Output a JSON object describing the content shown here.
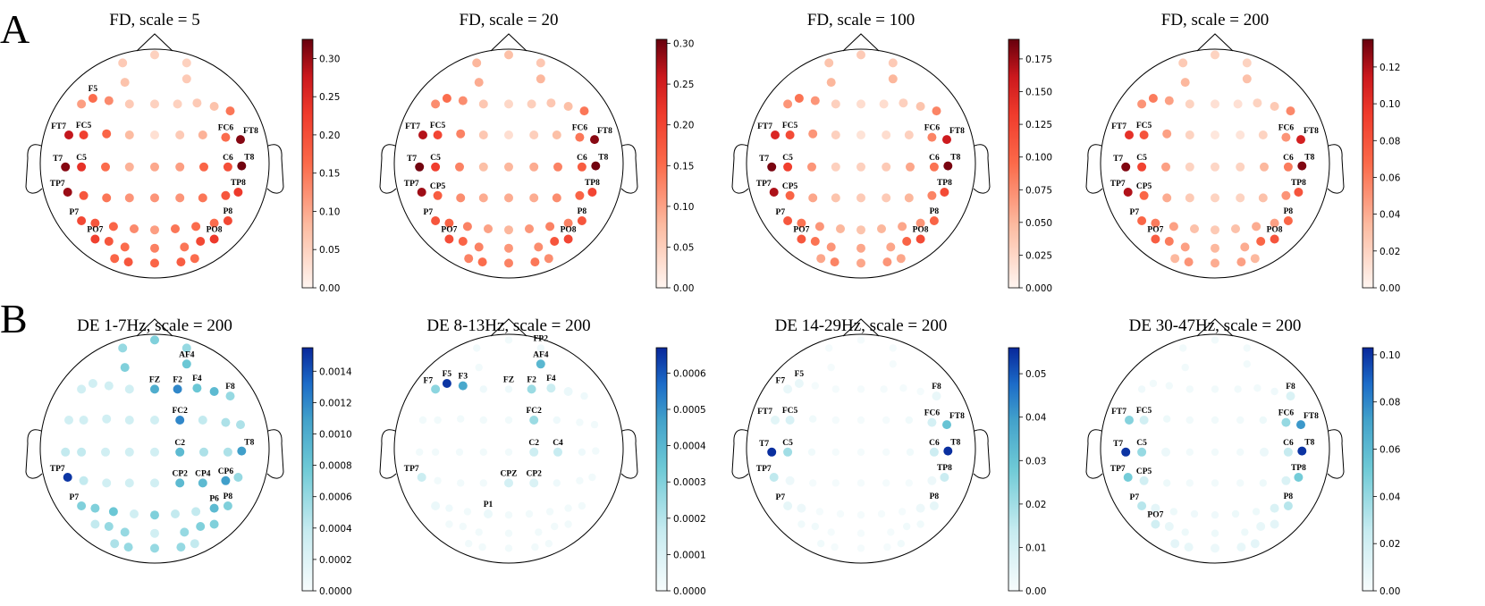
{
  "figure": {
    "row_labels": [
      "A",
      "B"
    ]
  },
  "chart_data": [
    {
      "type": "heatmap",
      "colormap": "Reds",
      "title": "FD, scale = 5",
      "colorbar_ticks": [
        "0.00",
        "0.05",
        "0.10",
        "0.15",
        "0.20",
        "0.25",
        "0.30"
      ],
      "vmax": 0.325,
      "values": {
        "FP1": 0.06,
        "FPZ": 0.05,
        "FP2": 0.05,
        "AF3": 0.07,
        "AF4": 0.06,
        "F7": 0.11,
        "F5": 0.16,
        "F3": 0.13,
        "F1": 0.06,
        "FZ": 0.05,
        "F2": 0.05,
        "F4": 0.06,
        "F6": 0.07,
        "F8": 0.15,
        "FT7": 0.28,
        "FC5": 0.22,
        "FC3": 0.17,
        "FC1": 0.08,
        "FCZ": 0.03,
        "FC2": 0.06,
        "FC4": 0.09,
        "FC6": 0.16,
        "FT8": 0.31,
        "T7": 0.31,
        "C5": 0.24,
        "C3": 0.16,
        "C1": 0.09,
        "CZ": 0.1,
        "C2": 0.11,
        "C4": 0.17,
        "C6": 0.2,
        "T8": 0.32,
        "TP7": 0.3,
        "CP5": 0.19,
        "CP3": 0.15,
        "CP1": 0.12,
        "CPZ": 0.12,
        "CP2": 0.12,
        "CP4": 0.15,
        "CP6": 0.19,
        "TP8": 0.23,
        "P7": 0.21,
        "P5": 0.19,
        "P3": 0.17,
        "P1": 0.13,
        "PZ": 0.11,
        "P2": 0.15,
        "P4": 0.16,
        "P6": 0.16,
        "P8": 0.21,
        "PO7": 0.22,
        "PO5": 0.19,
        "PO3": 0.16,
        "POZ": 0.14,
        "PO4": 0.15,
        "PO6": 0.21,
        "PO8": 0.23,
        "CB1": 0.17,
        "O1": 0.19,
        "OZ": 0.17,
        "O2": 0.18,
        "CB2": 0.16
      },
      "labels": [
        "F5",
        "FT7",
        "FC5",
        "T7",
        "C5",
        "TP7",
        "P7",
        "PO7",
        "FC6",
        "FT8",
        "C6",
        "T8",
        "TP8",
        "P8",
        "PO8"
      ]
    },
    {
      "type": "heatmap",
      "colormap": "Reds",
      "title": "FD, scale = 20",
      "colorbar_ticks": [
        "0.00",
        "0.05",
        "0.10",
        "0.15",
        "0.20",
        "0.25",
        "0.30"
      ],
      "vmax": 0.305,
      "values": {
        "FP1": 0.08,
        "FPZ": 0.07,
        "FP2": 0.06,
        "AF3": 0.09,
        "AF4": 0.08,
        "F7": 0.12,
        "F5": 0.15,
        "F3": 0.12,
        "F1": 0.06,
        "FZ": 0.04,
        "F2": 0.05,
        "F4": 0.06,
        "F6": 0.07,
        "F8": 0.14,
        "FT7": 0.27,
        "FC5": 0.2,
        "FC3": 0.13,
        "FC1": 0.06,
        "FCZ": 0.03,
        "FC2": 0.05,
        "FC4": 0.07,
        "FC6": 0.14,
        "FT8": 0.29,
        "T7": 0.3,
        "C5": 0.21,
        "C3": 0.13,
        "C1": 0.07,
        "CZ": 0.08,
        "C2": 0.09,
        "C4": 0.13,
        "C6": 0.17,
        "T8": 0.3,
        "TP7": 0.28,
        "CP5": 0.17,
        "CP3": 0.12,
        "CP1": 0.09,
        "CPZ": 0.09,
        "CP2": 0.09,
        "CP4": 0.12,
        "CP6": 0.16,
        "TP8": 0.2,
        "P7": 0.18,
        "P5": 0.16,
        "P3": 0.13,
        "P1": 0.1,
        "PZ": 0.08,
        "P2": 0.11,
        "P4": 0.13,
        "P6": 0.13,
        "P8": 0.18,
        "PO7": 0.19,
        "PO5": 0.16,
        "PO3": 0.13,
        "POZ": 0.11,
        "PO4": 0.12,
        "PO6": 0.18,
        "PO8": 0.2,
        "CB1": 0.13,
        "O1": 0.15,
        "OZ": 0.13,
        "O2": 0.14,
        "CB2": 0.12
      },
      "labels": [
        "FT7",
        "FC5",
        "T7",
        "C5",
        "TP7",
        "CP5",
        "P7",
        "PO7",
        "FC6",
        "FT8",
        "C6",
        "T8",
        "TP8",
        "P8",
        "PO8"
      ]
    },
    {
      "type": "heatmap",
      "colormap": "Reds",
      "title": "FD, scale = 100",
      "colorbar_ticks": [
        "0.000",
        "0.025",
        "0.050",
        "0.075",
        "0.100",
        "0.125",
        "0.150",
        "0.175"
      ],
      "vmax": 0.19,
      "values": {
        "FP1": 0.04,
        "FPZ": 0.035,
        "FP2": 0.035,
        "AF3": 0.05,
        "AF4": 0.05,
        "F7": 0.07,
        "F5": 0.09,
        "F3": 0.07,
        "F1": 0.03,
        "FZ": 0.02,
        "F2": 0.02,
        "F4": 0.03,
        "F6": 0.04,
        "F8": 0.08,
        "FT7": 0.15,
        "FC5": 0.12,
        "FC3": 0.07,
        "FC1": 0.03,
        "FCZ": 0.015,
        "FC2": 0.02,
        "FC4": 0.03,
        "FC6": 0.08,
        "FT8": 0.16,
        "T7": 0.185,
        "C5": 0.13,
        "C3": 0.07,
        "C1": 0.03,
        "CZ": 0.03,
        "C2": 0.035,
        "C4": 0.06,
        "C6": 0.09,
        "T8": 0.185,
        "TP7": 0.17,
        "CP5": 0.1,
        "CP3": 0.06,
        "CP1": 0.04,
        "CPZ": 0.035,
        "CP2": 0.035,
        "CP4": 0.05,
        "CP6": 0.08,
        "TP8": 0.12,
        "P7": 0.11,
        "P5": 0.09,
        "P3": 0.07,
        "P1": 0.05,
        "PZ": 0.04,
        "P2": 0.05,
        "P4": 0.06,
        "P6": 0.07,
        "P8": 0.1,
        "PO7": 0.11,
        "PO5": 0.09,
        "PO3": 0.07,
        "POZ": 0.06,
        "PO4": 0.06,
        "PO6": 0.1,
        "PO8": 0.12,
        "CB1": 0.06,
        "O1": 0.08,
        "OZ": 0.06,
        "O2": 0.07,
        "CB2": 0.06
      },
      "labels": [
        "FC5",
        "FT7",
        "T7",
        "C5",
        "TP7",
        "CP5",
        "P7",
        "PO7",
        "FC6",
        "FT8",
        "C6",
        "T8",
        "TP8",
        "P8",
        "PO8"
      ]
    },
    {
      "type": "heatmap",
      "colormap": "Reds",
      "title": "FD, scale = 200",
      "colorbar_ticks": [
        "0.00",
        "0.02",
        "0.04",
        "0.06",
        "0.08",
        "0.10",
        "0.12"
      ],
      "vmax": 0.135,
      "values": {
        "FP1": 0.025,
        "FPZ": 0.02,
        "FP2": 0.02,
        "AF3": 0.035,
        "AF4": 0.03,
        "F7": 0.05,
        "F5": 0.06,
        "F3": 0.045,
        "F1": 0.02,
        "FZ": 0.012,
        "F2": 0.012,
        "F4": 0.02,
        "F6": 0.025,
        "F8": 0.055,
        "FT7": 0.1,
        "FC5": 0.08,
        "FC3": 0.045,
        "FC1": 0.02,
        "FCZ": 0.008,
        "FC2": 0.01,
        "FC4": 0.02,
        "FC6": 0.05,
        "FT8": 0.11,
        "T7": 0.13,
        "C5": 0.09,
        "C3": 0.045,
        "C1": 0.02,
        "CZ": 0.018,
        "C2": 0.02,
        "C4": 0.035,
        "C6": 0.06,
        "T8": 0.13,
        "TP7": 0.12,
        "CP5": 0.07,
        "CP3": 0.04,
        "CP1": 0.025,
        "CPZ": 0.02,
        "CP2": 0.02,
        "CP4": 0.03,
        "CP6": 0.05,
        "TP8": 0.08,
        "P7": 0.07,
        "P5": 0.06,
        "P3": 0.045,
        "P1": 0.03,
        "PZ": 0.025,
        "P2": 0.03,
        "P4": 0.04,
        "P6": 0.045,
        "P8": 0.07,
        "PO7": 0.075,
        "PO5": 0.06,
        "PO3": 0.045,
        "POZ": 0.035,
        "PO4": 0.04,
        "PO6": 0.07,
        "PO8": 0.08,
        "CB1": 0.035,
        "O1": 0.05,
        "OZ": 0.04,
        "O2": 0.045,
        "CB2": 0.035
      },
      "labels": [
        "FC5",
        "FT7",
        "T7",
        "C5",
        "TP7",
        "CP5",
        "P7",
        "PO7",
        "FC6",
        "FT8",
        "C6",
        "T8",
        "TP8",
        "P8",
        "PO8"
      ]
    },
    {
      "type": "heatmap",
      "colormap": "GnBu",
      "title": "DE 1-7Hz, scale = 200",
      "colorbar_ticks": [
        "0.0000",
        "0.0002",
        "0.0004",
        "0.0006",
        "0.0008",
        "0.0010",
        "0.0012",
        "0.0014"
      ],
      "vmax": 0.00155,
      "values": {
        "FP1": 0.0006,
        "FPZ": 0.0007,
        "FP2": 0.0006,
        "AF3": 0.0007,
        "AF4": 0.0008,
        "F7": 0.0003,
        "F5": 0.0003,
        "F3": 0.0003,
        "F1": 0.0003,
        "FZ": 0.001,
        "F2": 0.0012,
        "F4": 0.0008,
        "F6": 0.0009,
        "F8": 0.0006,
        "FT7": 0.0003,
        "FC5": 0.0003,
        "FC3": 0.0003,
        "FC1": 0.0003,
        "FCZ": 0.0003,
        "FC2": 0.0012,
        "FC4": 0.0004,
        "FC6": 0.0005,
        "FT8": 0.0005,
        "T7": 0.0004,
        "C5": 0.0004,
        "C3": 0.0003,
        "C1": 0.0003,
        "CZ": 0.0003,
        "C2": 0.0009,
        "C4": 0.0005,
        "C6": 0.0005,
        "T8": 0.0011,
        "TP7": 0.0015,
        "CP5": 0.0004,
        "CP3": 0.0003,
        "CP1": 0.0003,
        "CPZ": 0.0003,
        "CP2": 0.0009,
        "CP4": 0.0009,
        "CP6": 0.0011,
        "TP8": 0.0006,
        "P7": 0.0007,
        "P5": 0.0007,
        "P3": 0.0008,
        "P1": 0.0003,
        "PZ": 0.0007,
        "P2": 0.0004,
        "P4": 0.0004,
        "P6": 0.0009,
        "P8": 0.0007,
        "PO7": 0.0004,
        "PO5": 0.0006,
        "PO3": 0.0006,
        "POZ": 0.0003,
        "PO4": 0.0006,
        "PO6": 0.0007,
        "PO8": 0.0007,
        "CB1": 0.0005,
        "O1": 0.0006,
        "OZ": 0.0006,
        "O2": 0.0006,
        "CB2": 0.0004
      },
      "labels": [
        "AF4",
        "FZ",
        "F2",
        "F4",
        "F8",
        "FC2",
        "C2",
        "T8",
        "TP7",
        "CP2",
        "CP4",
        "CP6",
        "P7",
        "P6",
        "P8"
      ]
    },
    {
      "type": "heatmap",
      "colormap": "GnBu",
      "title": "DE 8-13Hz, scale = 200",
      "colorbar_ticks": [
        "0.0000",
        "0.0001",
        "0.0002",
        "0.0003",
        "0.0004",
        "0.0005",
        "0.0006"
      ],
      "vmax": 0.00067,
      "values": {
        "FP1": 2e-05,
        "FPZ": 2e-05,
        "FP2": 3e-05,
        "AF3": 2e-05,
        "AF4": 0.0004,
        "F7": 0.00028,
        "F5": 0.00065,
        "F3": 0.00045,
        "F1": 3e-05,
        "FZ": 3e-05,
        "F2": 0.00025,
        "F4": 0.00015,
        "F6": 4e-05,
        "F8": 3e-05,
        "FT7": 2e-05,
        "FC5": 2e-05,
        "FC3": 2e-05,
        "FC1": 2e-05,
        "FCZ": 2e-05,
        "FC2": 0.00025,
        "FC4": 3e-05,
        "FC6": 2e-05,
        "FT8": 2e-05,
        "T7": 2e-05,
        "C5": 2e-05,
        "C3": 2e-05,
        "C1": 2e-05,
        "CZ": 2e-05,
        "C2": 0.00014,
        "C4": 0.00016,
        "C6": 3e-05,
        "T8": 2e-05,
        "TP7": 0.00015,
        "CP5": 2e-05,
        "CP3": 2e-05,
        "CP1": 2e-05,
        "CPZ": 0.00012,
        "CP2": 0.0001,
        "CP4": 3e-05,
        "CP6": 2e-05,
        "TP8": 2e-05,
        "P7": 4e-05,
        "P5": 3e-05,
        "P3": 2e-05,
        "P1": 4e-05,
        "PZ": 2e-05,
        "P2": 2e-05,
        "P4": 2e-05,
        "P6": 2e-05,
        "P8": 2e-05,
        "PO7": 2e-05,
        "PO5": 2e-05,
        "PO3": 2e-05,
        "POZ": 2e-05,
        "PO4": 2e-05,
        "PO6": 2e-05,
        "PO8": 2e-05,
        "CB1": 2e-05,
        "O1": 2e-05,
        "OZ": 2e-05,
        "O2": 2e-05,
        "CB2": 2e-05
      },
      "labels": [
        "FP2",
        "AF4",
        "F7",
        "F5",
        "F3",
        "FZ",
        "F2",
        "F4",
        "FC2",
        "C2",
        "C4",
        "TP7",
        "CPZ",
        "CP2",
        "P1"
      ]
    },
    {
      "type": "heatmap",
      "colormap": "GnBu",
      "title": "DE 14-29Hz, scale = 200",
      "colorbar_ticks": [
        "0.00",
        "0.01",
        "0.02",
        "0.03",
        "0.04",
        "0.05"
      ],
      "vmax": 0.056,
      "values": {
        "FP1": 0.001,
        "FPZ": 0.001,
        "FP2": 0.001,
        "AF3": 0.001,
        "AF4": 0.001,
        "F7": 0.004,
        "F5": 0.004,
        "F3": 0.001,
        "F1": 0.001,
        "FZ": 0.001,
        "F2": 0.001,
        "F4": 0.001,
        "F6": 0.001,
        "F8": 0.004,
        "FT7": 0.006,
        "FC5": 0.009,
        "FC3": 0.002,
        "FC1": 0.001,
        "FCZ": 0.001,
        "FC2": 0.001,
        "FC4": 0.002,
        "FC6": 0.01,
        "FT8": 0.03,
        "T7": 0.055,
        "C5": 0.02,
        "C3": 0.002,
        "C1": 0.001,
        "CZ": 0.001,
        "C2": 0.001,
        "C4": 0.002,
        "C6": 0.012,
        "T8": 0.055,
        "TP7": 0.015,
        "CP5": 0.003,
        "CP3": 0.001,
        "CP1": 0.001,
        "CPZ": 0.001,
        "CP2": 0.001,
        "CP4": 0.001,
        "CP6": 0.003,
        "TP8": 0.013,
        "P7": 0.005,
        "P5": 0.003,
        "P3": 0.001,
        "P1": 0.001,
        "PZ": 0.001,
        "P2": 0.001,
        "P4": 0.001,
        "P6": 0.003,
        "P8": 0.005,
        "PO7": 0.002,
        "PO5": 0.002,
        "PO3": 0.001,
        "POZ": 0.001,
        "PO4": 0.001,
        "PO6": 0.002,
        "PO8": 0.002,
        "CB1": 0.002,
        "O1": 0.001,
        "OZ": 0.001,
        "O2": 0.001,
        "CB2": 0.002
      },
      "labels": [
        "F7",
        "F5",
        "FC5",
        "FT7",
        "T7",
        "C5",
        "TP7",
        "P7",
        "F8",
        "FC6",
        "FT8",
        "C6",
        "T8",
        "TP8",
        "P8"
      ]
    },
    {
      "type": "heatmap",
      "colormap": "GnBu",
      "title": "DE 30-47Hz, scale = 200",
      "colorbar_ticks": [
        "0.00",
        "0.02",
        "0.04",
        "0.06",
        "0.08",
        "0.10"
      ],
      "vmax": 0.103,
      "values": {
        "FP1": 0.003,
        "FPZ": 0.003,
        "FP2": 0.003,
        "AF3": 0.003,
        "AF4": 0.003,
        "F7": 0.004,
        "F5": 0.003,
        "F3": 0.003,
        "F1": 0.003,
        "FZ": 0.003,
        "F2": 0.003,
        "F4": 0.003,
        "F6": 0.004,
        "F8": 0.015,
        "FT7": 0.045,
        "FC5": 0.02,
        "FC3": 0.005,
        "FC1": 0.003,
        "FCZ": 0.003,
        "FC2": 0.003,
        "FC4": 0.005,
        "FC6": 0.04,
        "FT8": 0.075,
        "T7": 0.1,
        "C5": 0.04,
        "C3": 0.006,
        "C1": 0.003,
        "CZ": 0.003,
        "C2": 0.003,
        "C4": 0.006,
        "C6": 0.025,
        "T8": 0.1,
        "TP7": 0.05,
        "CP5": 0.02,
        "CP3": 0.005,
        "CP1": 0.003,
        "CPZ": 0.003,
        "CP2": 0.003,
        "CP4": 0.005,
        "CP6": 0.015,
        "TP8": 0.05,
        "P7": 0.03,
        "P5": 0.01,
        "P3": 0.005,
        "P1": 0.004,
        "PZ": 0.004,
        "P2": 0.005,
        "P4": 0.005,
        "P6": 0.015,
        "P8": 0.03,
        "PO7": 0.02,
        "PO5": 0.008,
        "PO3": 0.005,
        "POZ": 0.005,
        "PO4": 0.005,
        "PO6": 0.008,
        "PO8": 0.01,
        "CB1": 0.01,
        "O1": 0.008,
        "OZ": 0.006,
        "O2": 0.008,
        "CB2": 0.01
      },
      "labels": [
        "F8",
        "FC5",
        "FC6",
        "FT7",
        "FT8",
        "T7",
        "C5",
        "C6",
        "T8",
        "TP7",
        "CP5",
        "TP8",
        "P7",
        "P8",
        "PO7"
      ]
    }
  ]
}
